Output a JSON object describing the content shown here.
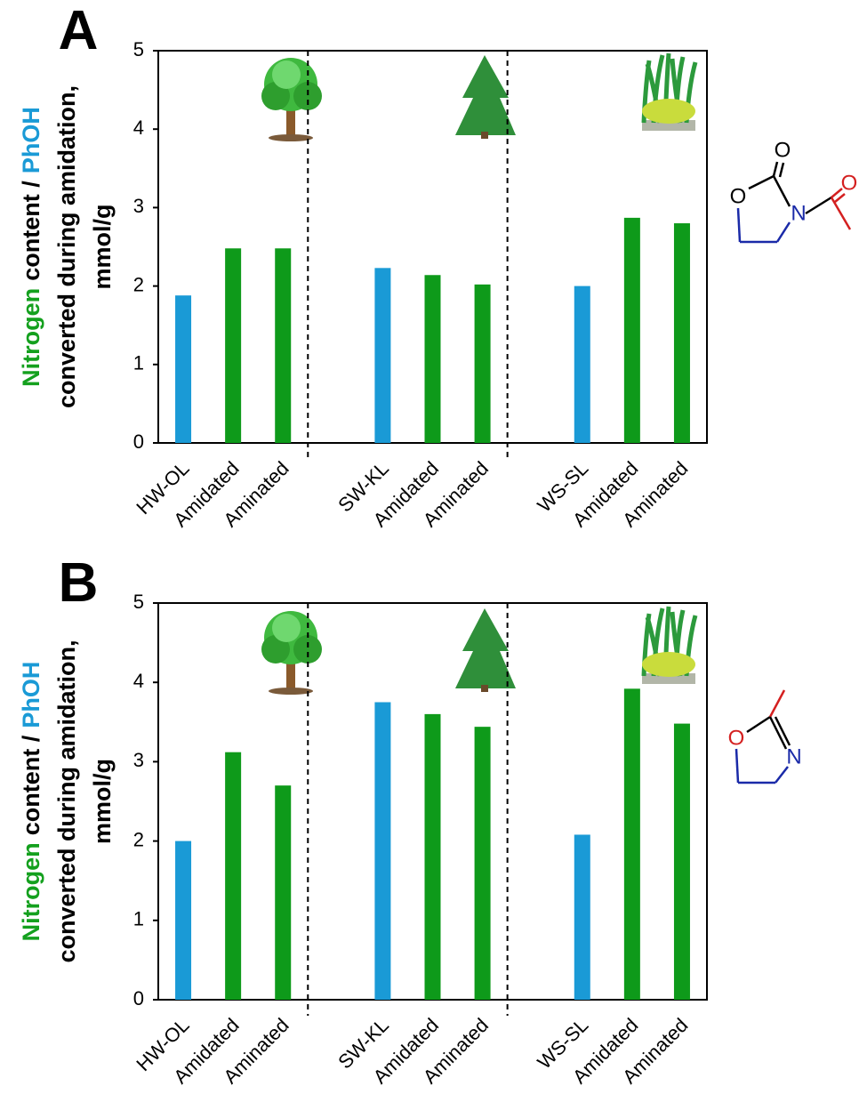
{
  "chart_data": [
    {
      "type": "bar",
      "panel_label": "A",
      "ylabel": {
        "line1": [
          "Nitrogen",
          "content /",
          "PhOH"
        ],
        "line2": "converted during amidation,",
        "line3": "mmol/g"
      },
      "categories": [
        "HW-OL",
        "Amidated",
        "Aminated",
        "SW-KL",
        "Amidated",
        "Aminated",
        "WS-SL",
        "Amidated",
        "Aminated"
      ],
      "values": [
        1.88,
        2.48,
        2.48,
        2.23,
        2.14,
        2.02,
        2.0,
        2.87,
        2.8
      ],
      "colors": [
        "#1a9ad6",
        "#0e9a1a",
        "#0e9a1a",
        "#1a9ad6",
        "#0e9a1a",
        "#0e9a1a",
        "#1a9ad6",
        "#0e9a1a",
        "#0e9a1a"
      ],
      "ylim": [
        0,
        5
      ],
      "yticks": [
        0,
        1,
        2,
        3,
        4,
        5
      ],
      "grid": false,
      "structure_atoms": [
        "O",
        "O",
        "N",
        "O"
      ]
    },
    {
      "type": "bar",
      "panel_label": "B",
      "ylabel": {
        "line1": [
          "Nitrogen",
          "content /",
          "PhOH"
        ],
        "line2": "converted during amidation,",
        "line3": "mmol/g"
      },
      "categories": [
        "HW-OL",
        "Amidated",
        "Aminated",
        "SW-KL",
        "Amidated",
        "Aminated",
        "WS-SL",
        "Amidated",
        "Aminated"
      ],
      "values": [
        2.0,
        3.12,
        2.7,
        3.75,
        3.6,
        3.44,
        2.08,
        3.92,
        3.48
      ],
      "colors": [
        "#1a9ad6",
        "#0e9a1a",
        "#0e9a1a",
        "#1a9ad6",
        "#0e9a1a",
        "#0e9a1a",
        "#1a9ad6",
        "#0e9a1a",
        "#0e9a1a"
      ],
      "ylim": [
        0,
        5
      ],
      "yticks": [
        0,
        1,
        2,
        3,
        4,
        5
      ],
      "grid": false,
      "structure_atoms": [
        "O",
        "N"
      ]
    }
  ]
}
